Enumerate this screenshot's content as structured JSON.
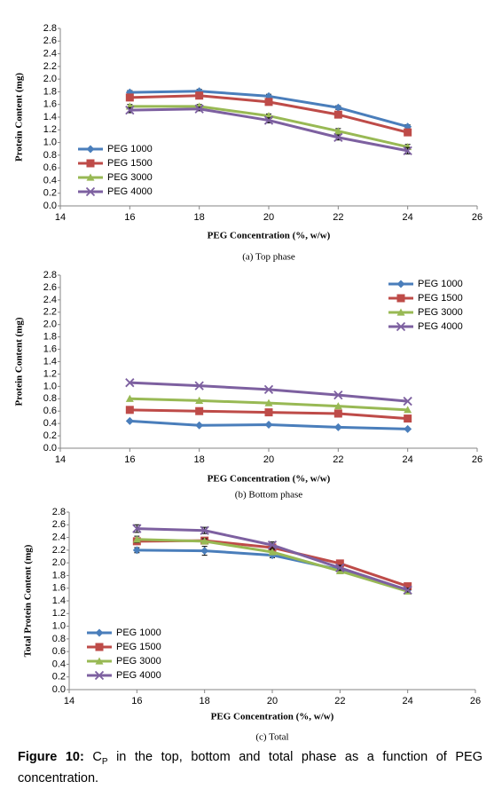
{
  "chart_data": [
    {
      "type": "line",
      "subtitle": "(a) Top phase",
      "x_label": "PEG Concentration (%, w/w)",
      "y_label": "Protein Content (mg)",
      "x": [
        16,
        18,
        20,
        22,
        24
      ],
      "xlim": [
        14,
        26
      ],
      "xticks": [
        14,
        16,
        18,
        20,
        22,
        24,
        26
      ],
      "ylim": [
        0,
        2.8
      ],
      "yticks": [
        {
          "value": 0,
          "label": "0.0"
        },
        0.2,
        0.4,
        0.6,
        0.8,
        {
          "value": 1,
          "label": "1.0"
        },
        1.2,
        1.4,
        1.6,
        1.8,
        {
          "value": 2,
          "label": "2.0"
        },
        2.2,
        2.4,
        2.6,
        2.8
      ],
      "legend": "lower left",
      "series": [
        {
          "name": "PEG 1000",
          "color": "#4a7ebb",
          "marker": "diamond",
          "values": [
            1.79,
            1.81,
            1.73,
            1.55,
            1.25
          ],
          "errors": [
            0.03,
            0.03,
            0.03,
            0.03,
            0.03
          ]
        },
        {
          "name": "PEG 1500",
          "color": "#be4b48",
          "marker": "square",
          "values": [
            1.71,
            1.74,
            1.64,
            1.44,
            1.16
          ],
          "errors": [
            0.03,
            0.03,
            0.03,
            0.03,
            0.03
          ]
        },
        {
          "name": "PEG 3000",
          "color": "#98b954",
          "marker": "triangle",
          "values": [
            1.57,
            1.57,
            1.42,
            1.18,
            0.93
          ],
          "errors": [
            0.03,
            0.03,
            0.03,
            0.04,
            0.04
          ]
        },
        {
          "name": "PEG 4000",
          "color": "#7d60a0",
          "marker": "cross",
          "values": [
            1.51,
            1.53,
            1.35,
            1.08,
            0.87
          ],
          "errors": [
            0.04,
            0.03,
            0.04,
            0.04,
            0.05
          ]
        }
      ]
    },
    {
      "type": "line",
      "subtitle": "(b) Bottom phase",
      "x_label": "PEG Concentration (%, w/w)",
      "y_label": "Protein Content (mg)",
      "x": [
        16,
        18,
        20,
        22,
        24
      ],
      "xlim": [
        14,
        26
      ],
      "xticks": [
        14,
        16,
        18,
        20,
        22,
        24,
        26
      ],
      "ylim": [
        0,
        2.8
      ],
      "yticks": [
        {
          "value": 0,
          "label": "0.0"
        },
        0.2,
        0.4,
        0.6,
        0.8,
        {
          "value": 1,
          "label": "1.0"
        },
        1.2,
        1.4,
        1.6,
        1.8,
        {
          "value": 2,
          "label": "2.0"
        },
        2.2,
        2.4,
        2.6,
        2.8
      ],
      "legend": "upper right",
      "series": [
        {
          "name": "PEG 1000",
          "color": "#4a7ebb",
          "marker": "diamond",
          "values": [
            0.44,
            0.37,
            0.38,
            0.34,
            0.31
          ]
        },
        {
          "name": "PEG 1500",
          "color": "#be4b48",
          "marker": "square",
          "values": [
            0.62,
            0.6,
            0.58,
            0.56,
            0.48
          ]
        },
        {
          "name": "PEG 3000",
          "color": "#98b954",
          "marker": "triangle",
          "values": [
            0.8,
            0.77,
            0.73,
            0.68,
            0.62
          ]
        },
        {
          "name": "PEG 4000",
          "color": "#7d60a0",
          "marker": "cross",
          "values": [
            1.06,
            1.01,
            0.95,
            0.86,
            0.76
          ]
        }
      ]
    },
    {
      "type": "line",
      "subtitle": "(c) Total",
      "x_label": "PEG Concentration (%, w/w)",
      "y_label": "Total Protein Content (mg)",
      "x": [
        16,
        18,
        20,
        22,
        24
      ],
      "xlim": [
        14,
        26
      ],
      "xticks": [
        14,
        16,
        18,
        20,
        22,
        24,
        26
      ],
      "ylim": [
        0,
        2.8
      ],
      "yticks": [
        {
          "value": 0,
          "label": "0.0"
        },
        0.2,
        0.4,
        0.6,
        0.8,
        {
          "value": 1,
          "label": "1.0"
        },
        1.2,
        1.4,
        1.6,
        1.8,
        {
          "value": 2,
          "label": "2.0"
        },
        2.2,
        2.4,
        2.6,
        2.8
      ],
      "legend": "lower left",
      "series": [
        {
          "name": "PEG 1000",
          "color": "#4a7ebb",
          "marker": "diamond",
          "values": [
            2.2,
            2.19,
            2.12,
            1.89,
            1.57
          ],
          "errors": [
            0.04,
            0.07,
            0.04,
            0.03,
            0.03
          ]
        },
        {
          "name": "PEG 1500",
          "color": "#be4b48",
          "marker": "square",
          "values": [
            2.34,
            2.35,
            2.24,
            1.99,
            1.63
          ],
          "errors": [
            0.05,
            0.05,
            0.05,
            0.03,
            0.03
          ]
        },
        {
          "name": "PEG 3000",
          "color": "#98b954",
          "marker": "triangle",
          "values": [
            2.37,
            2.34,
            2.17,
            1.87,
            1.55
          ],
          "errors": [
            0.05,
            0.04,
            0.04,
            0.03,
            0.03
          ]
        },
        {
          "name": "PEG 4000",
          "color": "#7d60a0",
          "marker": "cross",
          "values": [
            2.54,
            2.51,
            2.28,
            1.92,
            1.57
          ],
          "errors": [
            0.06,
            0.05,
            0.05,
            0.04,
            0.03
          ]
        }
      ]
    }
  ],
  "caption": {
    "label": "Figure 10:",
    "symbol": "C",
    "subscript": "P",
    "text": "in the top, bottom and total phase as a function of PEG concentration."
  }
}
